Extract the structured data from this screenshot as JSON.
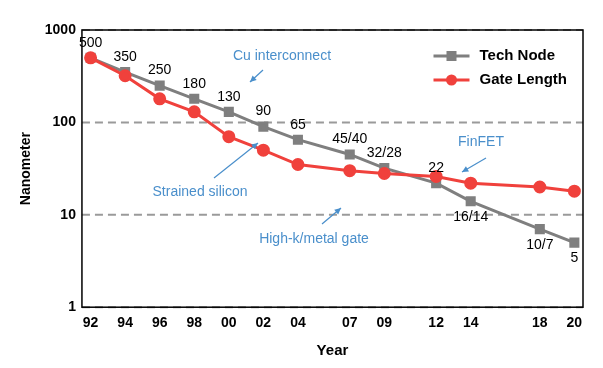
{
  "chart_data": {
    "type": "line",
    "x_label": "Year",
    "y_label": "Nanometer",
    "categories": [
      "92",
      null,
      "94",
      null,
      "96",
      null,
      "98",
      null,
      "00",
      null,
      "02",
      null,
      "04",
      null,
      null,
      "07",
      null,
      "09",
      null,
      null,
      "12",
      null,
      "14",
      null,
      null,
      null,
      "18",
      null,
      "20"
    ],
    "series": [
      {
        "name": "Tech Node",
        "color": "#7f7f7f",
        "marker": "square",
        "line_style": "solid",
        "data_labels": true,
        "values": [
          500,
          null,
          350,
          null,
          250,
          null,
          180,
          null,
          130,
          null,
          90,
          null,
          65,
          null,
          null,
          45,
          null,
          32,
          null,
          null,
          22,
          null,
          14,
          null,
          null,
          null,
          7,
          null,
          5
        ],
        "value_labels": [
          "500",
          null,
          "350",
          null,
          "250",
          null,
          "180",
          null,
          "130",
          null,
          "90",
          null,
          "65",
          null,
          null,
          "45/40",
          null,
          "32/28",
          null,
          null,
          "22",
          null,
          "16/14",
          null,
          null,
          null,
          "10/7",
          null,
          "5"
        ]
      },
      {
        "name": "Gate Length",
        "color": "#f0413c",
        "marker": "circle",
        "line_style": "solid",
        "values": [
          500,
          null,
          320,
          null,
          180,
          null,
          130,
          null,
          70,
          null,
          50,
          null,
          35,
          null,
          null,
          30,
          null,
          28,
          null,
          null,
          26,
          null,
          22,
          null,
          null,
          null,
          20,
          null,
          18
        ]
      }
    ],
    "log": "y",
    "ylim": [
      1,
      1000
    ],
    "yticks": [
      1,
      10,
      100,
      1000
    ],
    "grid": true,
    "legend": "upper right",
    "annotations": [
      "Cu interconnect",
      "Strained silicon",
      "High-k/metal gate",
      "FinFET"
    ]
  }
}
